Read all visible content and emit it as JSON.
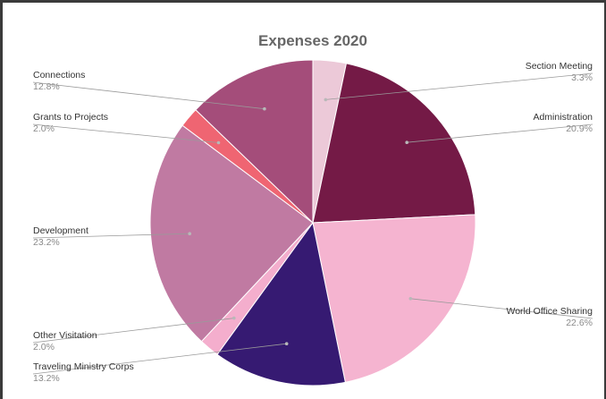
{
  "chart_data": {
    "type": "pie",
    "title": "Expenses 2020",
    "slices": [
      {
        "label": "Section Meeting",
        "value": 3.3,
        "percent_label": "3.3%",
        "color": "#ecc9d8"
      },
      {
        "label": "Administration",
        "value": 20.9,
        "percent_label": "20.9%",
        "color": "#741a46"
      },
      {
        "label": "World Office Sharing",
        "value": 22.6,
        "percent_label": "22.6%",
        "color": "#f5b4d0"
      },
      {
        "label": "Traveling Ministry Corps",
        "value": 13.2,
        "percent_label": "13.2%",
        "color": "#361a72"
      },
      {
        "label": "Other Visitation",
        "value": 2.0,
        "percent_label": "2.0%",
        "color": "#f4aecd"
      },
      {
        "label": "Development",
        "value": 23.2,
        "percent_label": "23.2%",
        "color": "#c07aa2"
      },
      {
        "label": "Grants to Projects",
        "value": 2.0,
        "percent_label": "2.0%",
        "color": "#ef6572"
      },
      {
        "label": "Connections",
        "value": 12.8,
        "percent_label": "12.8%",
        "color": "#a44d7a"
      }
    ],
    "start": "12 o'clock",
    "direction": "clockwise",
    "label_style": "leader lines to side labels"
  }
}
